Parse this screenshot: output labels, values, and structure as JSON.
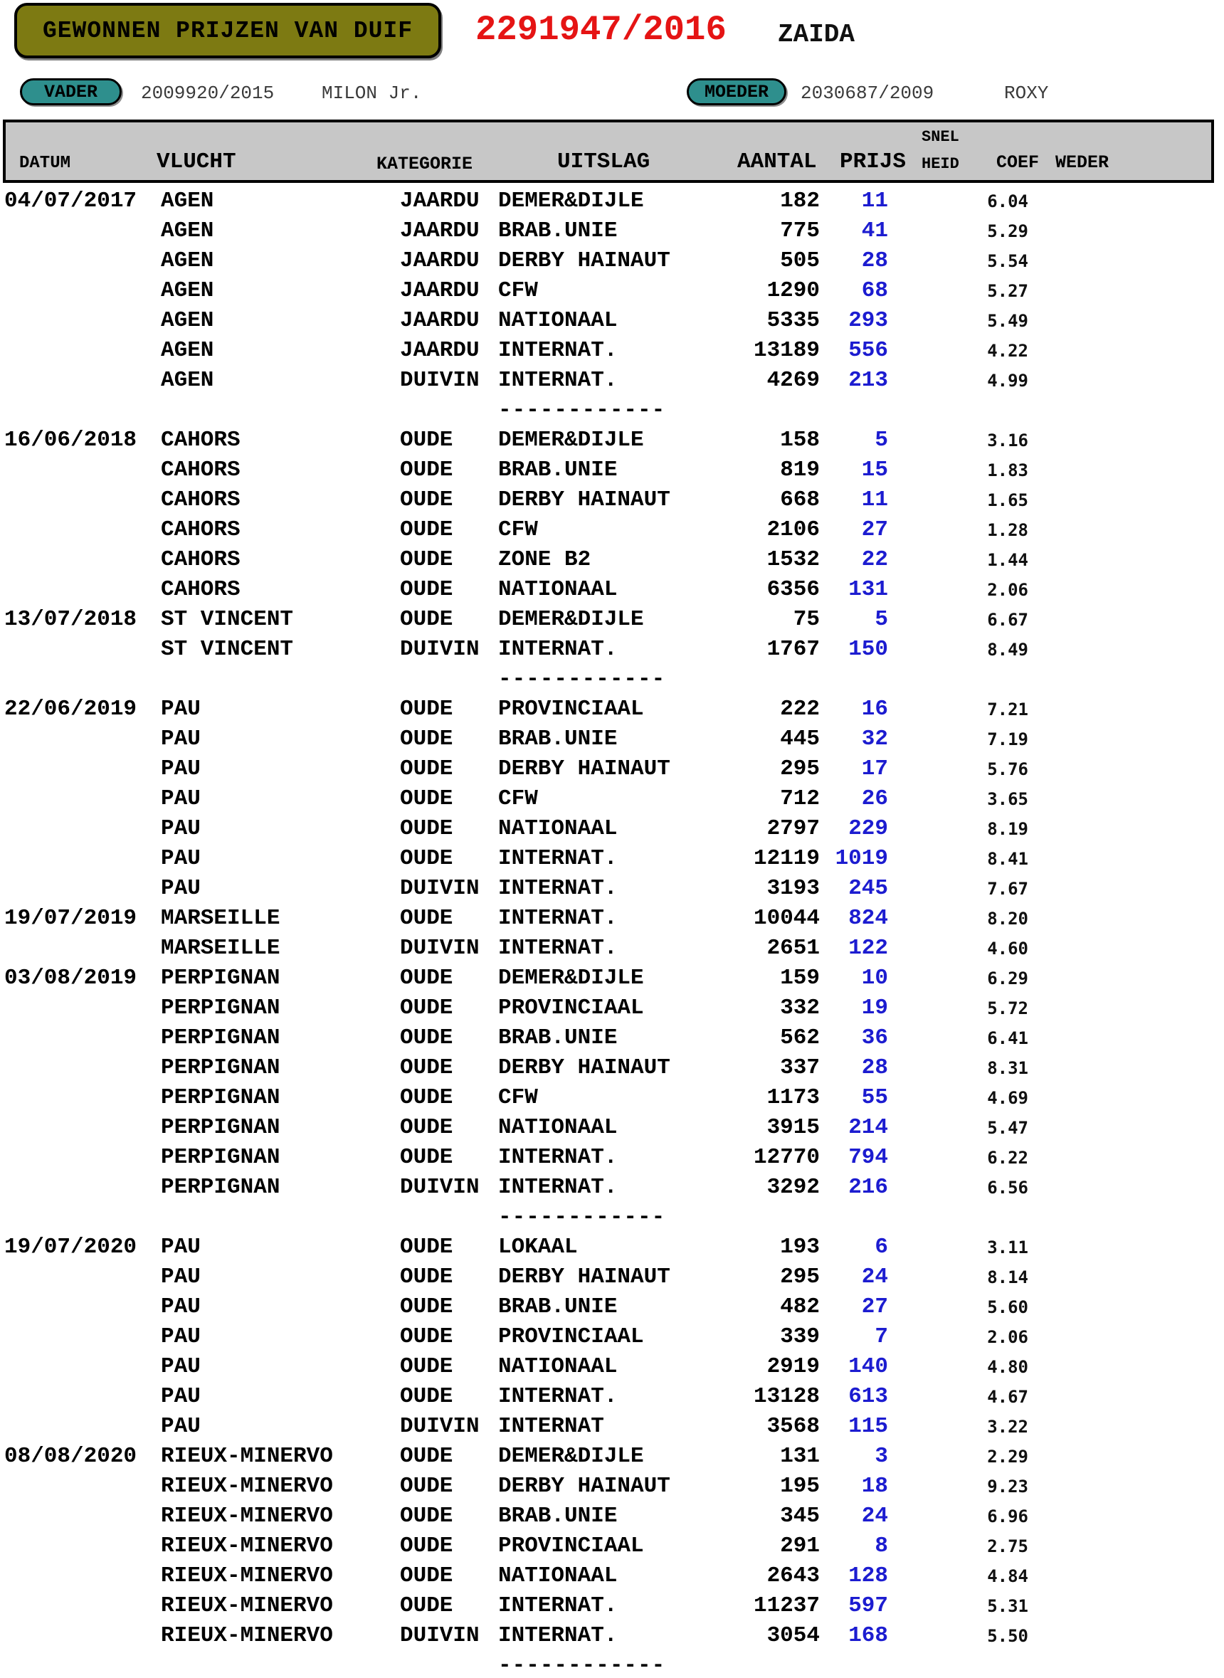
{
  "header": {
    "title": "GEWONNEN PRIJZEN VAN DUIF",
    "ring_number": "2291947/2016",
    "pigeon_name": "ZAIDA"
  },
  "parents": {
    "vader_label": "VADER",
    "vader_ring": "2009920/2015",
    "vader_name": "MILON Jr.",
    "moeder_label": "MOEDER",
    "moeder_ring": "2030687/2009",
    "moeder_name": "ROXY"
  },
  "colors": {
    "title_box_bg": "#7d7a12",
    "ring_number_red": "#e51414",
    "parent_badge_teal": "#2e8f8d",
    "table_header_bg": "#c7c7c7",
    "prijs_blue": "#1c1cd0"
  },
  "table": {
    "columns": {
      "datum": "DATUM",
      "vlucht": "VLUCHT",
      "kategorie": "KATEGORIE",
      "uitslag": "UITSLAG",
      "aantal": "AANTAL",
      "prijs": "PRIJS",
      "snelheid_line1": "SNEL",
      "snelheid_line2": "HEID",
      "coef": "COEF",
      "weder": "WEDER"
    },
    "separator_text": "------------",
    "rows": [
      {
        "datum": "04/07/2017",
        "vlucht": "AGEN",
        "kategorie": "JAARDU",
        "uitslag": "DEMER&DIJLE",
        "aantal": "182",
        "prijs": "11",
        "coef": "6.04"
      },
      {
        "datum": "",
        "vlucht": "AGEN",
        "kategorie": "JAARDU",
        "uitslag": "BRAB.UNIE",
        "aantal": "775",
        "prijs": "41",
        "coef": "5.29"
      },
      {
        "datum": "",
        "vlucht": "AGEN",
        "kategorie": "JAARDU",
        "uitslag": "DERBY HAINAUT",
        "aantal": "505",
        "prijs": "28",
        "coef": "5.54"
      },
      {
        "datum": "",
        "vlucht": "AGEN",
        "kategorie": "JAARDU",
        "uitslag": "CFW",
        "aantal": "1290",
        "prijs": "68",
        "coef": "5.27"
      },
      {
        "datum": "",
        "vlucht": "AGEN",
        "kategorie": "JAARDU",
        "uitslag": "NATIONAAL",
        "aantal": "5335",
        "prijs": "293",
        "coef": "5.49"
      },
      {
        "datum": "",
        "vlucht": "AGEN",
        "kategorie": "JAARDU",
        "uitslag": "INTERNAT.",
        "aantal": "13189",
        "prijs": "556",
        "coef": "4.22"
      },
      {
        "datum": "",
        "vlucht": "AGEN",
        "kategorie": "DUIVIN",
        "uitslag": "INTERNAT.",
        "aantal": "4269",
        "prijs": "213",
        "coef": "4.99"
      },
      {
        "separator": true
      },
      {
        "datum": "16/06/2018",
        "vlucht": "CAHORS",
        "kategorie": "OUDE",
        "uitslag": "DEMER&DIJLE",
        "aantal": "158",
        "prijs": "5",
        "coef": "3.16"
      },
      {
        "datum": "",
        "vlucht": "CAHORS",
        "kategorie": "OUDE",
        "uitslag": "BRAB.UNIE",
        "aantal": "819",
        "prijs": "15",
        "coef": "1.83"
      },
      {
        "datum": "",
        "vlucht": "CAHORS",
        "kategorie": "OUDE",
        "uitslag": "DERBY HAINAUT",
        "aantal": "668",
        "prijs": "11",
        "coef": "1.65"
      },
      {
        "datum": "",
        "vlucht": "CAHORS",
        "kategorie": "OUDE",
        "uitslag": "CFW",
        "aantal": "2106",
        "prijs": "27",
        "coef": "1.28"
      },
      {
        "datum": "",
        "vlucht": "CAHORS",
        "kategorie": "OUDE",
        "uitslag": "ZONE B2",
        "aantal": "1532",
        "prijs": "22",
        "coef": "1.44"
      },
      {
        "datum": "",
        "vlucht": "CAHORS",
        "kategorie": "OUDE",
        "uitslag": "NATIONAAL",
        "aantal": "6356",
        "prijs": "131",
        "coef": "2.06"
      },
      {
        "datum": "13/07/2018",
        "vlucht": "ST VINCENT",
        "kategorie": "OUDE",
        "uitslag": "DEMER&DIJLE",
        "aantal": "75",
        "prijs": "5",
        "coef": "6.67"
      },
      {
        "datum": "",
        "vlucht": "ST VINCENT",
        "kategorie": "DUIVIN",
        "uitslag": "INTERNAT.",
        "aantal": "1767",
        "prijs": "150",
        "coef": "8.49"
      },
      {
        "separator": true
      },
      {
        "datum": "22/06/2019",
        "vlucht": "PAU",
        "kategorie": "OUDE",
        "uitslag": "PROVINCIAAL",
        "aantal": "222",
        "prijs": "16",
        "coef": "7.21"
      },
      {
        "datum": "",
        "vlucht": "PAU",
        "kategorie": "OUDE",
        "uitslag": "BRAB.UNIE",
        "aantal": "445",
        "prijs": "32",
        "coef": "7.19"
      },
      {
        "datum": "",
        "vlucht": "PAU",
        "kategorie": "OUDE",
        "uitslag": "DERBY HAINAUT",
        "aantal": "295",
        "prijs": "17",
        "coef": "5.76"
      },
      {
        "datum": "",
        "vlucht": "PAU",
        "kategorie": "OUDE",
        "uitslag": "CFW",
        "aantal": "712",
        "prijs": "26",
        "coef": "3.65"
      },
      {
        "datum": "",
        "vlucht": "PAU",
        "kategorie": "OUDE",
        "uitslag": "NATIONAAL",
        "aantal": "2797",
        "prijs": "229",
        "coef": "8.19"
      },
      {
        "datum": "",
        "vlucht": "PAU",
        "kategorie": "OUDE",
        "uitslag": "INTERNAT.",
        "aantal": "12119",
        "prijs": "1019",
        "coef": "8.41"
      },
      {
        "datum": "",
        "vlucht": "PAU",
        "kategorie": "DUIVIN",
        "uitslag": "INTERNAT.",
        "aantal": "3193",
        "prijs": "245",
        "coef": "7.67"
      },
      {
        "datum": "19/07/2019",
        "vlucht": "MARSEILLE",
        "kategorie": "OUDE",
        "uitslag": "INTERNAT.",
        "aantal": "10044",
        "prijs": "824",
        "coef": "8.20"
      },
      {
        "datum": "",
        "vlucht": "MARSEILLE",
        "kategorie": "DUIVIN",
        "uitslag": "INTERNAT.",
        "aantal": "2651",
        "prijs": "122",
        "coef": "4.60"
      },
      {
        "datum": "03/08/2019",
        "vlucht": "PERPIGNAN",
        "kategorie": "OUDE",
        "uitslag": "DEMER&DIJLE",
        "aantal": "159",
        "prijs": "10",
        "coef": "6.29"
      },
      {
        "datum": "",
        "vlucht": "PERPIGNAN",
        "kategorie": "OUDE",
        "uitslag": "PROVINCIAAL",
        "aantal": "332",
        "prijs": "19",
        "coef": "5.72"
      },
      {
        "datum": "",
        "vlucht": "PERPIGNAN",
        "kategorie": "OUDE",
        "uitslag": "BRAB.UNIE",
        "aantal": "562",
        "prijs": "36",
        "coef": "6.41"
      },
      {
        "datum": "",
        "vlucht": "PERPIGNAN",
        "kategorie": "OUDE",
        "uitslag": "DERBY HAINAUT",
        "aantal": "337",
        "prijs": "28",
        "coef": "8.31"
      },
      {
        "datum": "",
        "vlucht": "PERPIGNAN",
        "kategorie": "OUDE",
        "uitslag": "CFW",
        "aantal": "1173",
        "prijs": "55",
        "coef": "4.69"
      },
      {
        "datum": "",
        "vlucht": "PERPIGNAN",
        "kategorie": "OUDE",
        "uitslag": "NATIONAAL",
        "aantal": "3915",
        "prijs": "214",
        "coef": "5.47"
      },
      {
        "datum": "",
        "vlucht": "PERPIGNAN",
        "kategorie": "OUDE",
        "uitslag": "INTERNAT.",
        "aantal": "12770",
        "prijs": "794",
        "coef": "6.22"
      },
      {
        "datum": "",
        "vlucht": "PERPIGNAN",
        "kategorie": "DUIVIN",
        "uitslag": "INTERNAT.",
        "aantal": "3292",
        "prijs": "216",
        "coef": "6.56"
      },
      {
        "separator": true
      },
      {
        "datum": "19/07/2020",
        "vlucht": "PAU",
        "kategorie": "OUDE",
        "uitslag": "LOKAAL",
        "aantal": "193",
        "prijs": "6",
        "coef": "3.11"
      },
      {
        "datum": "",
        "vlucht": "PAU",
        "kategorie": "OUDE",
        "uitslag": "DERBY HAINAUT",
        "aantal": "295",
        "prijs": "24",
        "coef": "8.14"
      },
      {
        "datum": "",
        "vlucht": "PAU",
        "kategorie": "OUDE",
        "uitslag": "BRAB.UNIE",
        "aantal": "482",
        "prijs": "27",
        "coef": "5.60"
      },
      {
        "datum": "",
        "vlucht": "PAU",
        "kategorie": "OUDE",
        "uitslag": "PROVINCIAAL",
        "aantal": "339",
        "prijs": "7",
        "coef": "2.06"
      },
      {
        "datum": "",
        "vlucht": "PAU",
        "kategorie": "OUDE",
        "uitslag": "NATIONAAL",
        "aantal": "2919",
        "prijs": "140",
        "coef": "4.80"
      },
      {
        "datum": "",
        "vlucht": "PAU",
        "kategorie": "OUDE",
        "uitslag": "INTERNAT.",
        "aantal": "13128",
        "prijs": "613",
        "coef": "4.67"
      },
      {
        "datum": "",
        "vlucht": "PAU",
        "kategorie": "DUIVIN",
        "uitslag": "INTERNAT",
        "aantal": "3568",
        "prijs": "115",
        "coef": "3.22"
      },
      {
        "datum": "08/08/2020",
        "vlucht": "RIEUX-MINERVO",
        "kategorie": "OUDE",
        "uitslag": "DEMER&DIJLE",
        "aantal": "131",
        "prijs": "3",
        "coef": "2.29"
      },
      {
        "datum": "",
        "vlucht": "RIEUX-MINERVO",
        "kategorie": "OUDE",
        "uitslag": "DERBY HAINAUT",
        "aantal": "195",
        "prijs": "18",
        "coef": "9.23"
      },
      {
        "datum": "",
        "vlucht": "RIEUX-MINERVO",
        "kategorie": "OUDE",
        "uitslag": "BRAB.UNIE",
        "aantal": "345",
        "prijs": "24",
        "coef": "6.96"
      },
      {
        "datum": "",
        "vlucht": "RIEUX-MINERVO",
        "kategorie": "OUDE",
        "uitslag": "PROVINCIAAL",
        "aantal": "291",
        "prijs": "8",
        "coef": "2.75"
      },
      {
        "datum": "",
        "vlucht": "RIEUX-MINERVO",
        "kategorie": "OUDE",
        "uitslag": "NATIONAAL",
        "aantal": "2643",
        "prijs": "128",
        "coef": "4.84"
      },
      {
        "datum": "",
        "vlucht": "RIEUX-MINERVO",
        "kategorie": "OUDE",
        "uitslag": "INTERNAT.",
        "aantal": "11237",
        "prijs": "597",
        "coef": "5.31"
      },
      {
        "datum": "",
        "vlucht": "RIEUX-MINERVO",
        "kategorie": "DUIVIN",
        "uitslag": "INTERNAT.",
        "aantal": "3054",
        "prijs": "168",
        "coef": "5.50"
      },
      {
        "separator": true
      }
    ]
  }
}
